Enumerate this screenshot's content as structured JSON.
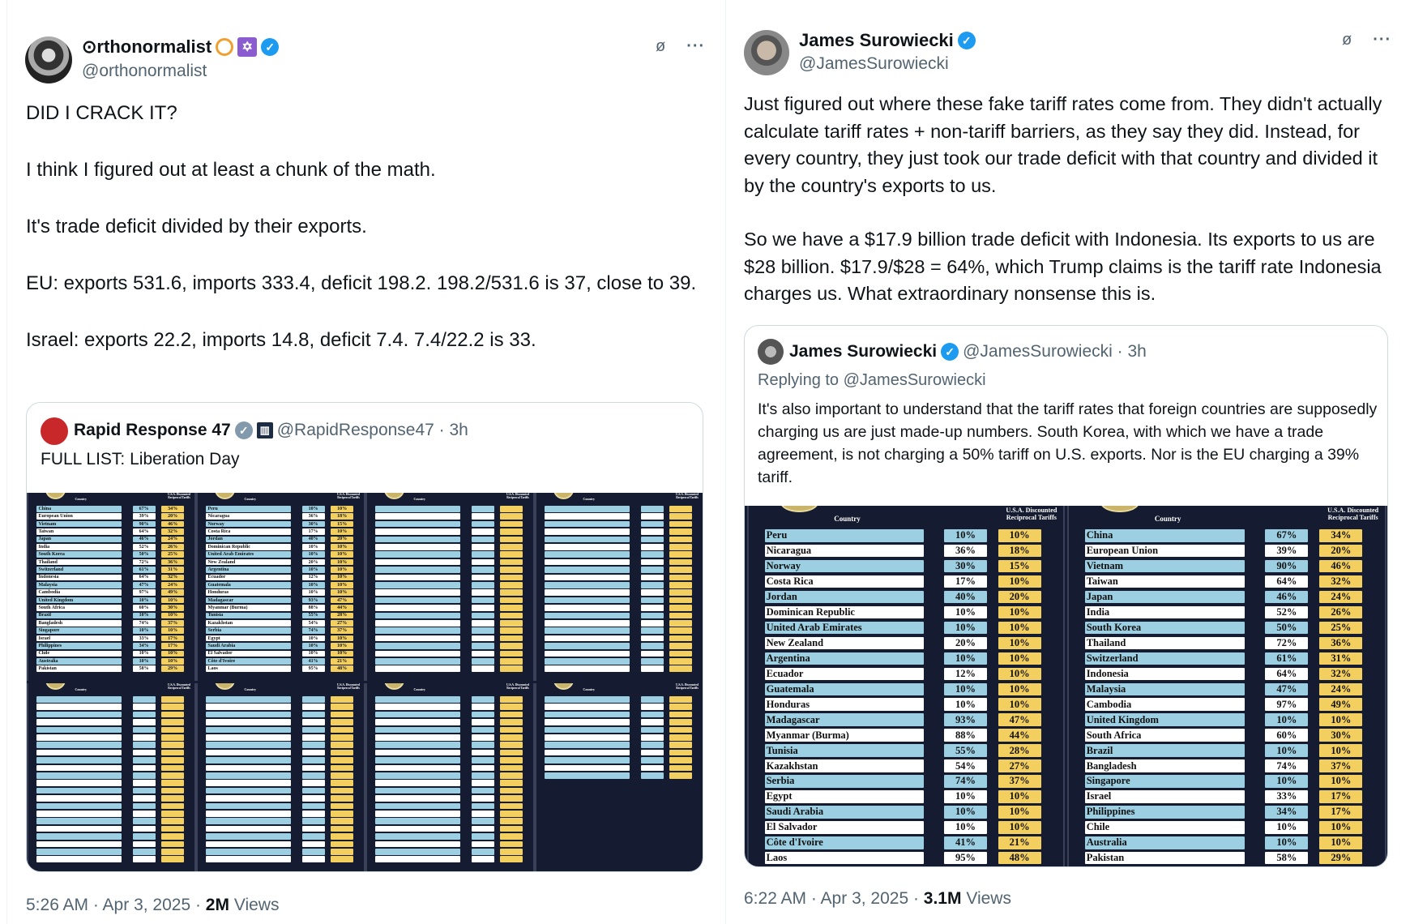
{
  "left_tweet": {
    "display_name": "⊙rthonormalist",
    "handle": "@orthonormalist",
    "paragraphs": [
      "DID I CRACK IT?",
      "I think I figured out at least a chunk of the math.",
      "It's trade deficit divided by their exports.",
      "EU: exports 531.6, imports 333.4, deficit 198.2. 198.2/531.6 is 37, close to 39.",
      "Israel: exports 22.2, imports 14.8, deficit 7.4. 7.4/22.2 is 33."
    ],
    "quoted": {
      "display_name": "Rapid Response 47",
      "handle_time": "@RapidResponse47 · 3h",
      "text": "FULL LIST: Liberation Day"
    },
    "time": "5:26 AM · Apr 3, 2025 · ",
    "views_count": "2M",
    "views_label": " Views"
  },
  "right_tweet": {
    "display_name": "James Surowiecki",
    "handle": "@JamesSurowiecki",
    "paragraphs": [
      "Just figured out where these fake tariff rates come from. They didn't actually calculate tariff rates + non-tariff barriers, as they say they did. Instead, for every country, they just took our trade deficit with that country and divided it by the country's exports to us.",
      "So we have a $17.9 billion trade deficit with Indonesia. Its exports to us are $28 billion. $17.9/$28 = 64%, which Trump claims is the tariff rate Indonesia charges us. What extraordinary nonsense this is."
    ],
    "quoted": {
      "display_name": "James Surowiecki",
      "handle_time": "@JamesSurowiecki · 3h",
      "replying": "Replying to @JamesSurowiecki",
      "text": "It's also important to understand that the tariff rates that foreign countries are supposedly charging us are just made-up numbers. South Korea, with which we have a trade agreement, is not charging a 50% tariff on U.S. exports. Nor is the EU charging a 39% tariff."
    },
    "time": "6:22 AM · Apr 3, 2025 · ",
    "views_count": "3.1M",
    "views_label": " Views"
  },
  "tariff_table": {
    "col_country": "Country",
    "col_reciprocal": "U.S.A. Discounted Reciprocal Tariffs",
    "panel_a": [
      [
        "Peru",
        "10%",
        "10%"
      ],
      [
        "Nicaragua",
        "36%",
        "18%"
      ],
      [
        "Norway",
        "30%",
        "15%"
      ],
      [
        "Costa Rica",
        "17%",
        "10%"
      ],
      [
        "Jordan",
        "40%",
        "20%"
      ],
      [
        "Dominican Republic",
        "10%",
        "10%"
      ],
      [
        "United Arab Emirates",
        "10%",
        "10%"
      ],
      [
        "New Zealand",
        "20%",
        "10%"
      ],
      [
        "Argentina",
        "10%",
        "10%"
      ],
      [
        "Ecuador",
        "12%",
        "10%"
      ],
      [
        "Guatemala",
        "10%",
        "10%"
      ],
      [
        "Honduras",
        "10%",
        "10%"
      ],
      [
        "Madagascar",
        "93%",
        "47%"
      ],
      [
        "Myanmar (Burma)",
        "88%",
        "44%"
      ],
      [
        "Tunisia",
        "55%",
        "28%"
      ],
      [
        "Kazakhstan",
        "54%",
        "27%"
      ],
      [
        "Serbia",
        "74%",
        "37%"
      ],
      [
        "Egypt",
        "10%",
        "10%"
      ],
      [
        "Saudi Arabia",
        "10%",
        "10%"
      ],
      [
        "El Salvador",
        "10%",
        "10%"
      ],
      [
        "Côte d'Ivoire",
        "41%",
        "21%"
      ],
      [
        "Laos",
        "95%",
        "48%"
      ]
    ],
    "panel_b": [
      [
        "China",
        "67%",
        "34%"
      ],
      [
        "European Union",
        "39%",
        "20%"
      ],
      [
        "Vietnam",
        "90%",
        "46%"
      ],
      [
        "Taiwan",
        "64%",
        "32%"
      ],
      [
        "Japan",
        "46%",
        "24%"
      ],
      [
        "India",
        "52%",
        "26%"
      ],
      [
        "South Korea",
        "50%",
        "25%"
      ],
      [
        "Thailand",
        "72%",
        "36%"
      ],
      [
        "Switzerland",
        "61%",
        "31%"
      ],
      [
        "Indonesia",
        "64%",
        "32%"
      ],
      [
        "Malaysia",
        "47%",
        "24%"
      ],
      [
        "Cambodia",
        "97%",
        "49%"
      ],
      [
        "United Kingdom",
        "10%",
        "10%"
      ],
      [
        "South Africa",
        "60%",
        "30%"
      ],
      [
        "Brazil",
        "10%",
        "10%"
      ],
      [
        "Bangladesh",
        "74%",
        "37%"
      ],
      [
        "Singapore",
        "10%",
        "10%"
      ],
      [
        "Israel",
        "33%",
        "17%"
      ],
      [
        "Philippines",
        "34%",
        "17%"
      ],
      [
        "Chile",
        "10%",
        "10%"
      ],
      [
        "Australia",
        "10%",
        "10%"
      ],
      [
        "Pakistan",
        "58%",
        "29%"
      ]
    ]
  },
  "colors": {
    "accent": "#1d9bf0",
    "row_blue": "#9ccfe2",
    "row_yellow": "#f3cf5f",
    "table_bg": "#151b30",
    "muted": "#536471"
  },
  "icons": [
    "verified-badge-icon",
    "grok-icon",
    "more-icon",
    "star-of-david-icon",
    "government-badge-icon"
  ]
}
